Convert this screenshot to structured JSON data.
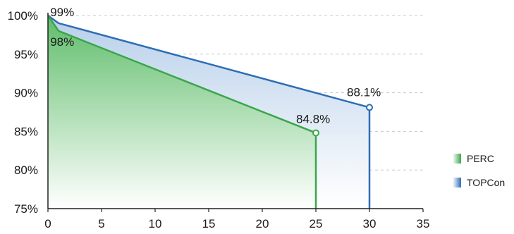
{
  "chart_data": {
    "type": "area",
    "xlim": [
      0,
      35
    ],
    "ylim": [
      75,
      100
    ],
    "x_ticks": [
      0,
      5,
      10,
      15,
      20,
      25,
      30,
      35
    ],
    "y_ticks": [
      75,
      80,
      85,
      90,
      95,
      100
    ],
    "y_tick_labels": [
      "75%",
      "80%",
      "85%",
      "90%",
      "95%",
      "100%"
    ],
    "grid": "horizontal-dashed",
    "legend_position": "right",
    "series": [
      {
        "name": "TOPCon",
        "color": "#2e6db5",
        "fill_top": "#b7cfea",
        "fill_bottom": "#ffffff",
        "x": [
          0,
          1,
          30
        ],
        "y": [
          100,
          99,
          88.1
        ],
        "labels": [
          {
            "x": 1,
            "y": 99,
            "text": "99%"
          },
          {
            "x": 30,
            "y": 88.1,
            "text": "88.1%"
          }
        ]
      },
      {
        "name": "PERC",
        "color": "#3aa64a",
        "fill_top": "#5fbd6a",
        "fill_bottom": "#ffffff",
        "x": [
          0,
          1,
          25
        ],
        "y": [
          100,
          98,
          84.8
        ],
        "labels": [
          {
            "x": 1,
            "y": 98,
            "text": "98%"
          },
          {
            "x": 25,
            "y": 84.8,
            "text": "84.8%"
          }
        ]
      }
    ]
  }
}
